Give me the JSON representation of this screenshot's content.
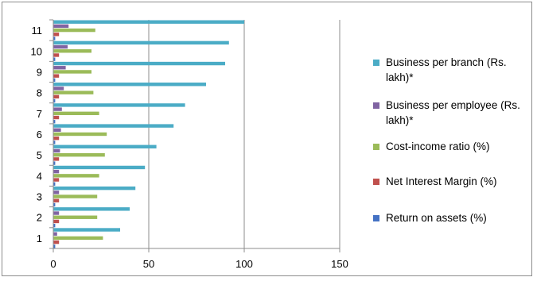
{
  "chart_data": {
    "type": "bar",
    "orientation": "horizontal",
    "categories": [
      "1",
      "2",
      "3",
      "4",
      "5",
      "6",
      "7",
      "8",
      "9",
      "10",
      "11"
    ],
    "series": [
      {
        "name": "Return on assets (%)",
        "color": "#4472c4",
        "values": [
          1.0,
          1.0,
          1.0,
          1.0,
          1.0,
          1.0,
          1.0,
          1.0,
          1.0,
          1.0,
          1.0
        ]
      },
      {
        "name": "Net Interest Margin (%)",
        "color": "#c0504d",
        "values": [
          3.0,
          3.0,
          3.0,
          3.0,
          3.0,
          3.0,
          3.0,
          3.0,
          3.0,
          3.0,
          3.0
        ]
      },
      {
        "name": "Cost-income ratio (%)",
        "color": "#9bbb59",
        "values": [
          26,
          23,
          23,
          24,
          27,
          28,
          24,
          21,
          20,
          20,
          22
        ]
      },
      {
        "name": "Business per employee (Rs. lakh)*",
        "color": "#8064a2",
        "values": [
          2,
          3,
          3,
          3,
          3.5,
          4,
          4.5,
          5.5,
          6.5,
          7.5,
          8
        ]
      },
      {
        "name": "Business per branch (Rs. lakh)*",
        "color": "#4bacc6",
        "values": [
          35,
          40,
          43,
          48,
          54,
          63,
          69,
          80,
          90,
          92,
          100
        ]
      }
    ],
    "xlim": [
      0,
      150
    ],
    "xticks": [
      "0",
      "50",
      "100",
      "150"
    ],
    "grid": "vertical",
    "legend_position": "right"
  }
}
